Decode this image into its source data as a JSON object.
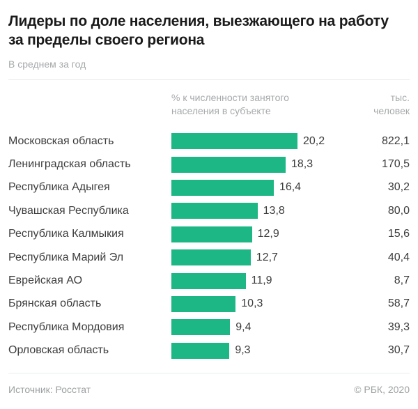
{
  "title": "Лидеры по доле населения, выезжающего на работу за пределы своего региона",
  "subtitle": "В среднем за год",
  "columns": {
    "percent_header": "% к численности занятого населения в субъекте",
    "thousands_header": "тыс. человек"
  },
  "footer": {
    "source": "Источник: Росстат",
    "copyright": "© РБК, 2020"
  },
  "colors": {
    "bar": "#1CB784",
    "title_text": "#1A1A1A",
    "body_text": "#3C3C3C",
    "muted_text": "#A6A9AB",
    "divider": "#E9EAEA"
  },
  "chart_data": {
    "type": "bar",
    "orientation": "horizontal",
    "title": "Лидеры по доле населения, выезжающего на работу за пределы своего региона",
    "subtitle": "В среднем за год",
    "categories": [
      "Московская область",
      "Ленинградская область",
      "Республика Адыгея",
      "Чувашская Республика",
      "Республика Калмыкия",
      "Республика Марий Эл",
      "Еврейская АО",
      "Брянская область",
      "Республика Мордовия",
      "Орловская область"
    ],
    "series": [
      {
        "name": "% к численности занятого населения в субъекте",
        "values": [
          20.2,
          18.3,
          16.4,
          13.8,
          12.9,
          12.7,
          11.9,
          10.3,
          9.4,
          9.3
        ],
        "labels": [
          "20,2",
          "18,3",
          "16,4",
          "13,8",
          "12,9",
          "12,7",
          "11,9",
          "10,3",
          "9,4",
          "9,3"
        ]
      },
      {
        "name": "тыс. человек",
        "values": [
          822.1,
          170.5,
          30.2,
          80.0,
          15.6,
          40.4,
          8.7,
          58.7,
          39.3,
          30.7
        ],
        "labels": [
          "822,1",
          "170,5",
          "30,2",
          "80,0",
          "15,6",
          "40,4",
          "8,7",
          "58,7",
          "39,3",
          "30,7"
        ]
      }
    ],
    "xlim": [
      0,
      20.2
    ],
    "bar_color": "#1CB784",
    "grid": false,
    "legend": false
  }
}
